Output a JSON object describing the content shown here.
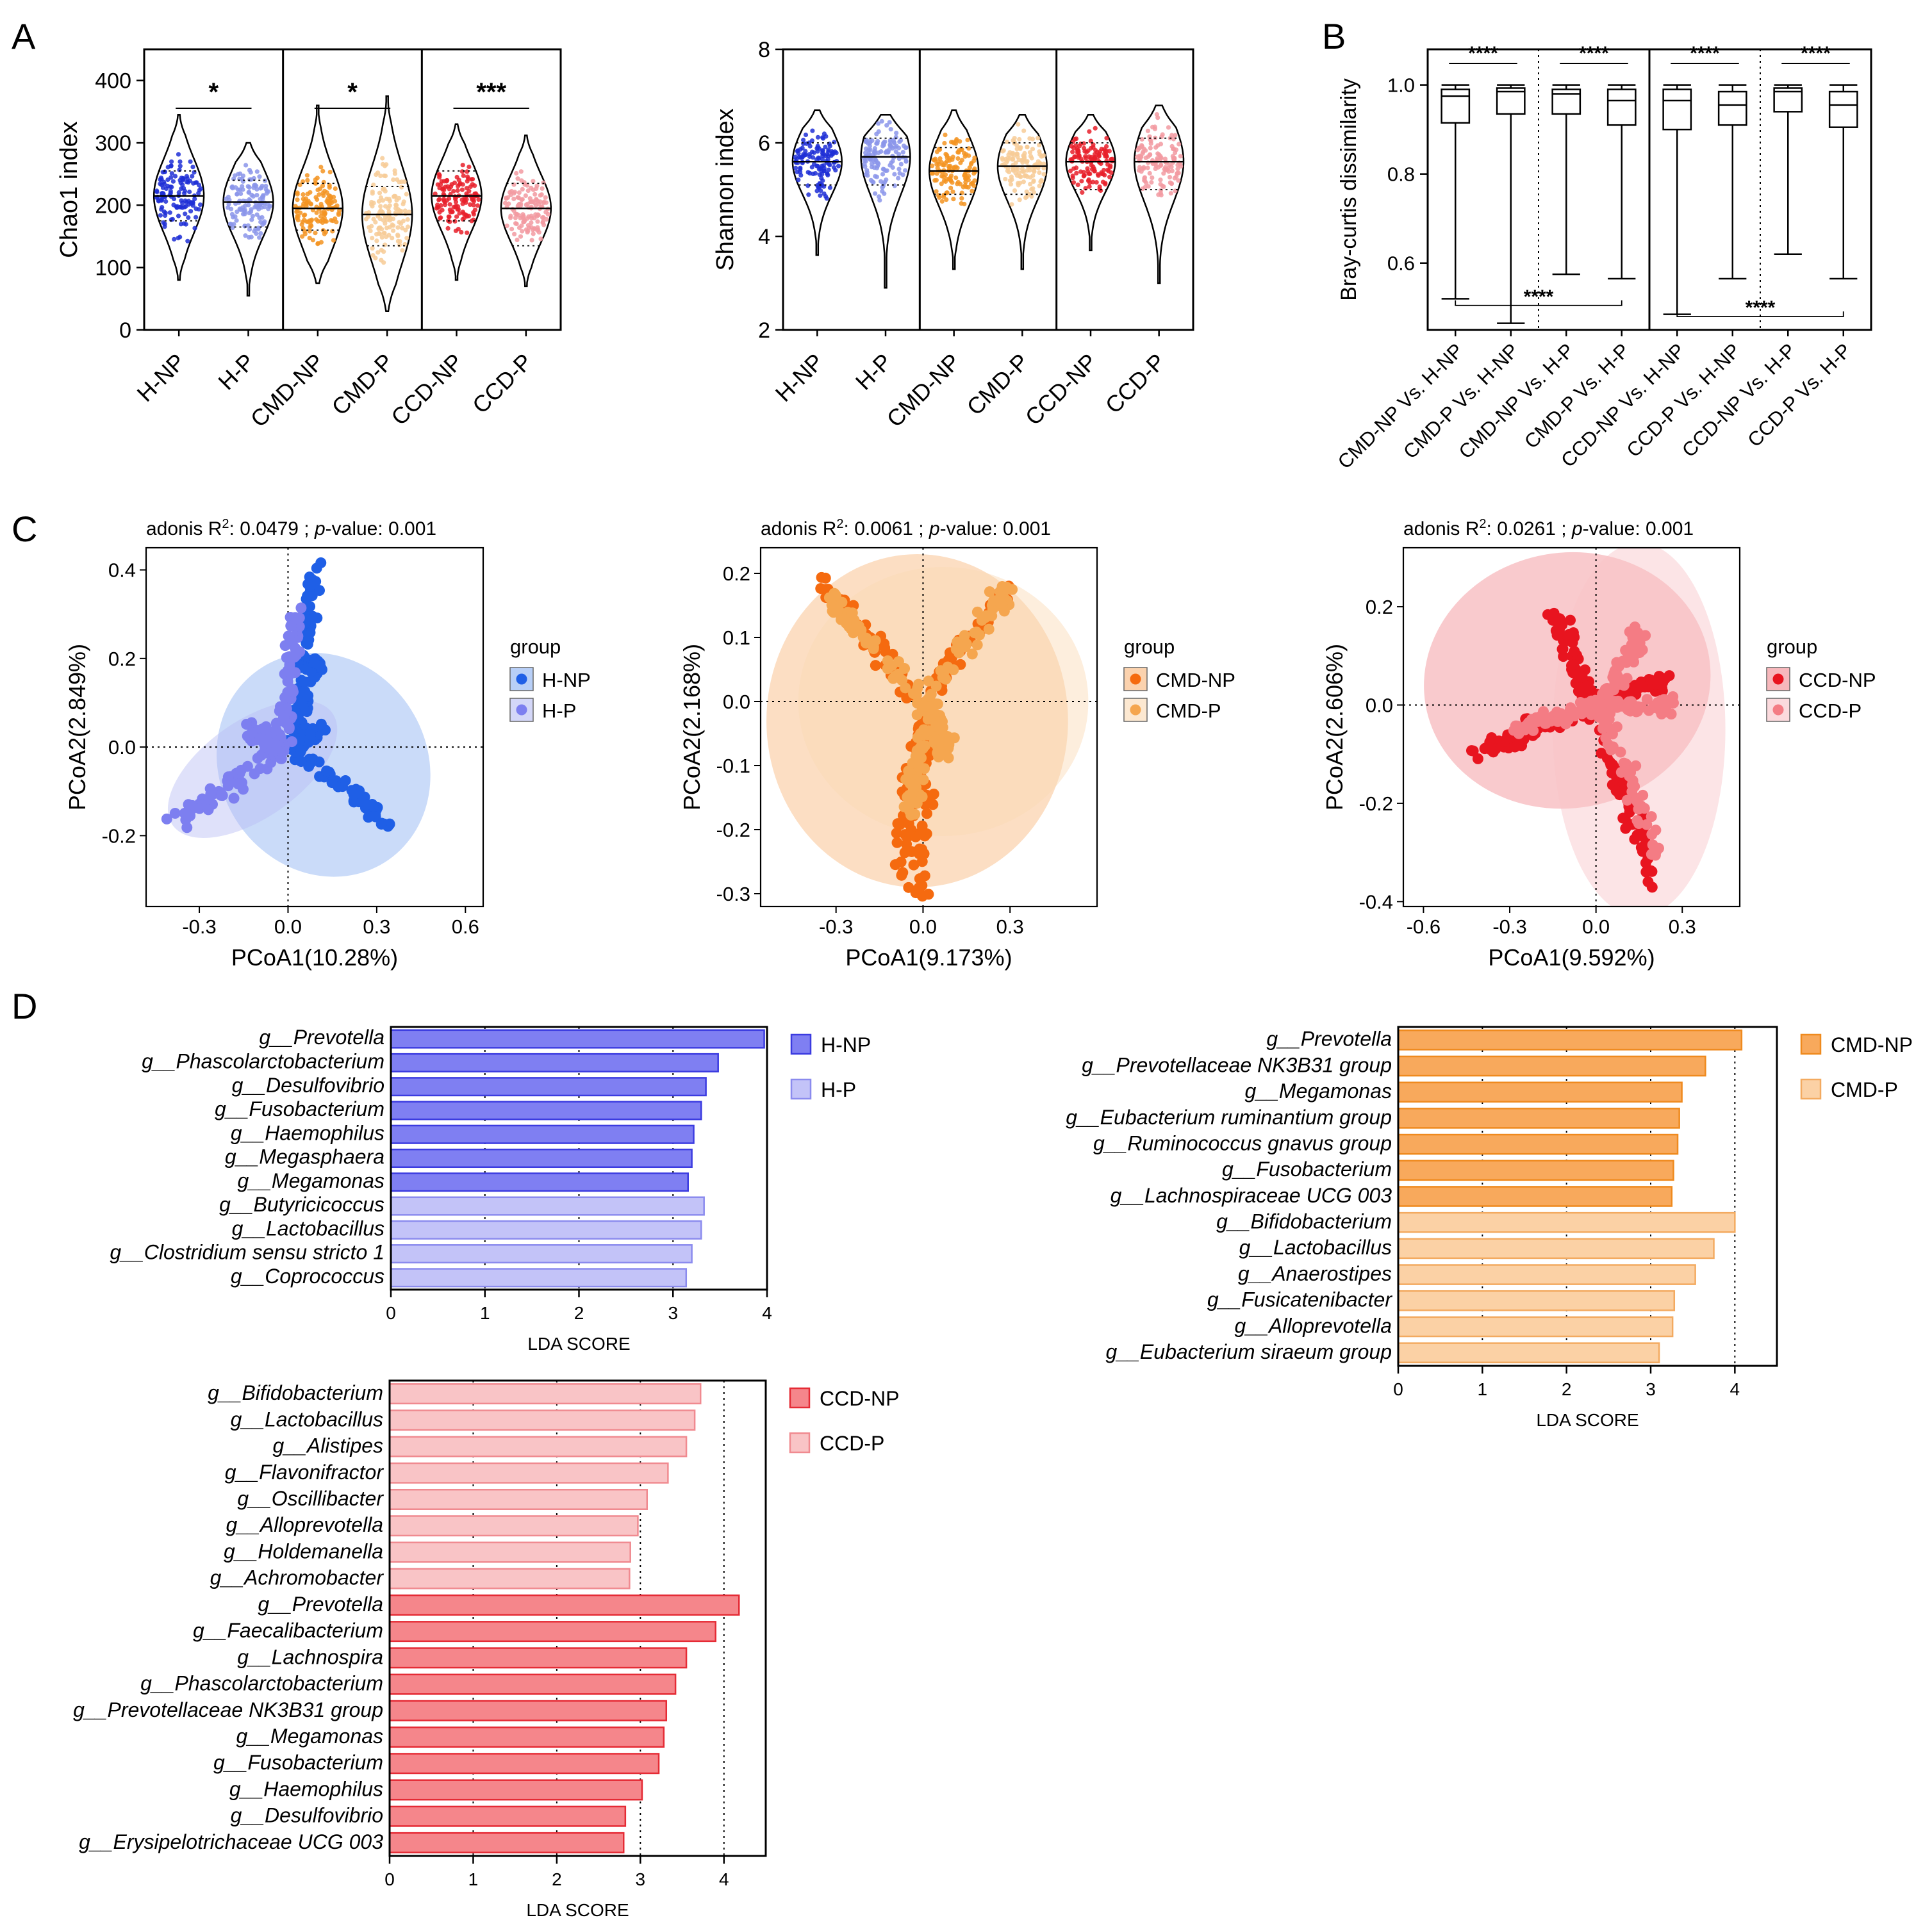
{
  "panels": {
    "A": {
      "label": "A"
    },
    "B": {
      "label": "B"
    },
    "C": {
      "label": "C"
    },
    "D": {
      "label": "D"
    }
  },
  "chart_data": [
    {
      "id": "chao1",
      "type": "violin",
      "panel": "A",
      "ylabel": "Chao1 index",
      "ylim": [
        0,
        450
      ],
      "yticks": [
        0,
        100,
        200,
        300,
        400
      ],
      "categories": [
        "H-NP",
        "H-P",
        "CMD-NP",
        "CMD-P",
        "CCD-NP",
        "CCD-P"
      ],
      "colors": [
        "#1f2fd6",
        "#8b95ea",
        "#f39422",
        "#f7cb96",
        "#e8202a",
        "#f29aa1"
      ],
      "ranges": [
        [
          80,
          345
        ],
        [
          55,
          300
        ],
        [
          75,
          360
        ],
        [
          30,
          375
        ],
        [
          80,
          330
        ],
        [
          70,
          312
        ]
      ],
      "medians": [
        215,
        205,
        195,
        185,
        215,
        195
      ],
      "quartiles": [
        [
          175,
          255
        ],
        [
          165,
          240
        ],
        [
          160,
          235
        ],
        [
          135,
          230
        ],
        [
          175,
          255
        ],
        [
          135,
          235
        ]
      ],
      "significance": [
        {
          "pair": [
            "H-NP",
            "H-P"
          ],
          "label": "*"
        },
        {
          "pair": [
            "CMD-NP",
            "CMD-P"
          ],
          "label": "*"
        },
        {
          "pair": [
            "CCD-NP",
            "CCD-P"
          ],
          "label": "***"
        }
      ]
    },
    {
      "id": "shannon",
      "type": "violin",
      "panel": "A",
      "ylabel": "Shannon index",
      "ylim": [
        2,
        8
      ],
      "yticks": [
        2,
        4,
        6,
        8
      ],
      "categories": [
        "H-NP",
        "H-P",
        "CMD-NP",
        "CMD-P",
        "CCD-NP",
        "CCD-P"
      ],
      "colors": [
        "#1f2fd6",
        "#8b95ea",
        "#f39422",
        "#f7cb96",
        "#e8202a",
        "#f29aa1"
      ],
      "ranges": [
        [
          3.6,
          6.7
        ],
        [
          2.9,
          6.6
        ],
        [
          3.3,
          6.7
        ],
        [
          3.3,
          6.6
        ],
        [
          3.7,
          6.6
        ],
        [
          3.0,
          6.8
        ]
      ],
      "medians": [
        5.6,
        5.7,
        5.4,
        5.5,
        5.6,
        5.6
      ],
      "quartiles": [
        [
          5.1,
          6.0
        ],
        [
          5.1,
          6.1
        ],
        [
          4.9,
          5.9
        ],
        [
          4.9,
          6.0
        ],
        [
          5.0,
          6.0
        ],
        [
          5.0,
          6.1
        ]
      ]
    },
    {
      "id": "bray",
      "type": "box",
      "panel": "B",
      "ylabel": "Bray-curtis dissimilarity",
      "ylim": [
        0.45,
        1.08
      ],
      "yticks": [
        0.6,
        0.8,
        1.0
      ],
      "ytick_labels": [
        "0.6",
        "0.8",
        "1.0"
      ],
      "categories": [
        "CMD-NP Vs. H-NP",
        "CMD-P Vs. H-NP",
        "CMD-NP Vs. H-P",
        "CMD-P Vs. H-P",
        "CCD-NP Vs. H-NP",
        "CCD-P Vs. H-NP",
        "CCD-NP Vs. H-P",
        "CCD-P Vs. H-P"
      ],
      "boxes": [
        {
          "min": 0.52,
          "q1": 0.915,
          "median": 0.975,
          "q3": 0.99,
          "max": 1.0
        },
        {
          "min": 0.465,
          "q1": 0.935,
          "median": 0.985,
          "q3": 0.993,
          "max": 1.0
        },
        {
          "min": 0.575,
          "q1": 0.935,
          "median": 0.98,
          "q3": 0.99,
          "max": 1.0
        },
        {
          "min": 0.565,
          "q1": 0.91,
          "median": 0.965,
          "q3": 0.99,
          "max": 1.0
        },
        {
          "min": 0.485,
          "q1": 0.9,
          "median": 0.965,
          "q3": 0.99,
          "max": 1.0
        },
        {
          "min": 0.565,
          "q1": 0.91,
          "median": 0.955,
          "q3": 0.985,
          "max": 1.0
        },
        {
          "min": 0.62,
          "q1": 0.94,
          "median": 0.985,
          "q3": 0.993,
          "max": 1.0
        },
        {
          "min": 0.565,
          "q1": 0.905,
          "median": 0.955,
          "q3": 0.985,
          "max": 1.0
        }
      ],
      "significance": [
        "****",
        "****",
        "****",
        "****",
        "****",
        "****"
      ]
    },
    {
      "id": "pcoa_h",
      "type": "scatter",
      "panel": "C",
      "title_prefix": "adonis R",
      "title_sup": "2",
      "title_value": ":  0.0479 ; ",
      "title_p_label": "p",
      "title_p_value": "-value:  0.001",
      "xlabel": "PCoA1(10.28%)",
      "ylabel": "PCoA2(2.849%)",
      "xlim": [
        -0.48,
        0.66
      ],
      "ylim": [
        -0.36,
        0.45
      ],
      "xticks": [
        -0.3,
        0.0,
        0.3,
        0.6
      ],
      "xtick_labels": [
        "-0.3",
        "0.0",
        "0.3",
        "0.6"
      ],
      "yticks": [
        -0.2,
        0.0,
        0.2,
        0.4
      ],
      "ytick_labels": [
        "-0.2",
        "0.0",
        "0.2",
        "0.4"
      ],
      "legend_title": "group",
      "series": [
        {
          "name": "H-NP",
          "color": "#1f5fe6",
          "ellipse_color": "#8ab0f2",
          "ellipse": {
            "cx": 0.12,
            "cy": -0.04,
            "rx": 0.35,
            "ry": 0.26,
            "angle": -32
          },
          "arms": [
            [
              0.08,
              0.42,
              0.3
            ],
            [
              0.08,
              0.2,
              0.28
            ],
            [
              0.1,
              0.04,
              0.3
            ],
            [
              0.34,
              -0.18,
              0.3
            ]
          ]
        },
        {
          "name": "H-P",
          "color": "#7d7ff0",
          "ellipse_color": "#b9bdf5",
          "ellipse": {
            "cx": -0.12,
            "cy": -0.05,
            "rx": 0.33,
            "ry": 0.11,
            "angle": -35
          },
          "arms": [
            [
              -0.36,
              -0.17,
              0.9
            ],
            [
              -0.1,
              0.03,
              0.9
            ],
            [
              0.04,
              0.3,
              0.35
            ]
          ]
        }
      ]
    },
    {
      "id": "pcoa_cmd",
      "type": "scatter",
      "panel": "C",
      "title_prefix": "adonis R",
      "title_sup": "2",
      "title_value": ":  0.0061 ; ",
      "title_p_label": "p",
      "title_p_value": "-value:  0.001",
      "xlabel": "PCoA1(9.173%)",
      "ylabel": "PCoA2(2.168%)",
      "xlim": [
        -0.56,
        0.6
      ],
      "ylim": [
        -0.32,
        0.24
      ],
      "xticks": [
        -0.3,
        0.0,
        0.3
      ],
      "xtick_labels": [
        "-0.3",
        "0.0",
        "0.3"
      ],
      "yticks": [
        -0.3,
        -0.2,
        -0.1,
        0.0,
        0.1,
        0.2
      ],
      "ytick_labels": [
        "-0.3",
        "-0.2",
        "-0.1",
        "0.0",
        "0.1",
        "0.2"
      ],
      "legend_title": "group",
      "series": [
        {
          "name": "CMD-NP",
          "color": "#f56a0f",
          "ellipse_color": "#f9b57a",
          "ellipse": {
            "cx": -0.02,
            "cy": -0.03,
            "rx": 0.52,
            "ry": 0.26,
            "angle": 0
          },
          "arms": [
            [
              -0.37,
              0.19,
              0.5
            ],
            [
              -0.08,
              -0.25,
              0.5
            ],
            [
              0.0,
              -0.3,
              0.8
            ],
            [
              0.3,
              0.18,
              0.35
            ]
          ]
        },
        {
          "name": "CMD-P",
          "color": "#f5a64f",
          "ellipse_color": "#fbd9b3",
          "ellipse": {
            "cx": 0.07,
            "cy": 0.0,
            "rx": 0.5,
            "ry": 0.21,
            "angle": 0
          },
          "arms": [
            [
              -0.33,
              0.16,
              0.3
            ],
            [
              -0.05,
              -0.17,
              0.4
            ],
            [
              0.29,
              0.18,
              0.7
            ],
            [
              0.08,
              -0.08,
              0.8
            ]
          ]
        }
      ]
    },
    {
      "id": "pcoa_ccd",
      "type": "scatter",
      "panel": "C",
      "title_prefix": "adonis R",
      "title_sup": "2",
      "title_value": ":  0.0261 ; ",
      "title_p_label": "p",
      "title_p_value": "-value:  0.001",
      "xlabel": "PCoA1(9.592%)",
      "ylabel": "PCoA2(2.606%)",
      "xlim": [
        -0.67,
        0.5
      ],
      "ylim": [
        -0.41,
        0.32
      ],
      "xticks": [
        -0.6,
        -0.3,
        0.0,
        0.3
      ],
      "xtick_labels": [
        "-0.6",
        "-0.3",
        "0.0",
        "0.3"
      ],
      "yticks": [
        -0.4,
        -0.2,
        0.0,
        0.2
      ],
      "ytick_labels": [
        "-0.4",
        "-0.2",
        "0.0",
        "0.2"
      ],
      "legend_title": "group",
      "series": [
        {
          "name": "CCD-NP",
          "color": "#e8141f",
          "ellipse_color": "#f28a90",
          "ellipse": {
            "cx": -0.1,
            "cy": 0.05,
            "rx": 0.5,
            "ry": 0.26,
            "angle": -10
          },
          "arms": [
            [
              -0.4,
              -0.1,
              0.9
            ],
            [
              -0.13,
              0.18,
              0.6
            ],
            [
              0.25,
              0.05,
              0.35
            ],
            [
              0.22,
              -0.37,
              0.8
            ]
          ]
        },
        {
          "name": "CCD-P",
          "color": "#f47c84",
          "ellipse_color": "#f9c3c7",
          "ellipse": {
            "cx": 0.15,
            "cy": -0.05,
            "rx": 0.3,
            "ry": 0.38,
            "angle": 0
          },
          "arms": [
            [
              -0.3,
              -0.05,
              0.4
            ],
            [
              0.15,
              0.15,
              0.5
            ],
            [
              0.25,
              0.0,
              0.4
            ],
            [
              0.2,
              -0.3,
              0.8
            ]
          ]
        }
      ]
    },
    {
      "id": "lefse_h",
      "type": "bar",
      "orientation": "horizontal",
      "panel": "D",
      "xlabel": "LDA SCORE",
      "xlim": [
        0,
        4
      ],
      "xticks": [
        0,
        1,
        2,
        3,
        4
      ],
      "legend": [
        {
          "name": "H-NP",
          "fill": "#7f7ff2",
          "stroke": "#3b3be0"
        },
        {
          "name": "H-P",
          "fill": "#c3c3f8",
          "stroke": "#8b8bee"
        }
      ],
      "categories": [
        "g__Prevotella",
        "g__Phascolarctobacterium",
        "g__Desulfovibrio",
        "g__Fusobacterium",
        "g__Haemophilus",
        "g__Megasphaera",
        "g__Megamonas",
        "g__Butyricicoccus",
        "g__Lactobacillus",
        "g__Clostridium sensu stricto 1",
        "g__Coprococcus"
      ],
      "values": [
        3.97,
        3.48,
        3.35,
        3.3,
        3.22,
        3.2,
        3.16,
        3.33,
        3.3,
        3.2,
        3.14
      ],
      "groups": [
        "H-NP",
        "H-NP",
        "H-NP",
        "H-NP",
        "H-NP",
        "H-NP",
        "H-NP",
        "H-P",
        "H-P",
        "H-P",
        "H-P"
      ]
    },
    {
      "id": "lefse_cmd",
      "type": "bar",
      "orientation": "horizontal",
      "panel": "D",
      "xlabel": "LDA SCORE",
      "xlim": [
        0,
        4.5
      ],
      "xticks": [
        0,
        1,
        2,
        3,
        4
      ],
      "legend": [
        {
          "name": "CMD-NP",
          "fill": "#f8a95c",
          "stroke": "#ef8a1e"
        },
        {
          "name": "CMD-P",
          "fill": "#fbd1a5",
          "stroke": "#f3aa60"
        }
      ],
      "categories": [
        "g__Prevotella",
        "g__Prevotellaceae NK3B31 group",
        "g__Megamonas",
        "g__Eubacterium ruminantium group",
        "g__Ruminococcus gnavus group",
        "g__Fusobacterium",
        "g__Lachnospiraceae UCG 003",
        "g__Bifidobacterium",
        "g__Lactobacillus",
        "g__Anaerostipes",
        "g__Fusicatenibacter",
        "g__Alloprevotella",
        "g__Eubacterium siraeum group"
      ],
      "values": [
        4.08,
        3.65,
        3.37,
        3.34,
        3.32,
        3.27,
        3.25,
        4.0,
        3.75,
        3.53,
        3.28,
        3.26,
        3.1
      ],
      "groups": [
        "CMD-NP",
        "CMD-NP",
        "CMD-NP",
        "CMD-NP",
        "CMD-NP",
        "CMD-NP",
        "CMD-NP",
        "CMD-P",
        "CMD-P",
        "CMD-P",
        "CMD-P",
        "CMD-P",
        "CMD-P"
      ]
    },
    {
      "id": "lefse_ccd",
      "type": "bar",
      "orientation": "horizontal",
      "panel": "D",
      "xlabel": "LDA SCORE",
      "xlim": [
        0,
        4.5
      ],
      "xticks": [
        0,
        1,
        2,
        3,
        4
      ],
      "legend": [
        {
          "name": "CCD-NP",
          "fill": "#f5868b",
          "stroke": "#e52b35"
        },
        {
          "name": "CCD-P",
          "fill": "#f9c4c6",
          "stroke": "#f08a90"
        }
      ],
      "categories": [
        "g__Bifidobacterium",
        "g__Lactobacillus",
        "g__Alistipes",
        "g__Flavonifractor",
        "g__Oscillibacter",
        "g__Alloprevotella",
        "g__Holdemanella",
        "g__Achromobacter",
        "g__Prevotella",
        "g__Faecalibacterium",
        "g__Lachnospira",
        "g__Phascolarctobacterium",
        "g__Prevotellaceae NK3B31 group",
        "g__Megamonas",
        "g__Fusobacterium",
        "g__Haemophilus",
        "g__Desulfovibrio",
        "g__Erysipelotrichaceae UCG 003"
      ],
      "values": [
        3.72,
        3.65,
        3.55,
        3.33,
        3.08,
        2.97,
        2.88,
        2.87,
        4.18,
        3.9,
        3.55,
        3.42,
        3.31,
        3.28,
        3.22,
        3.02,
        2.82,
        2.8
      ],
      "groups": [
        "CCD-P",
        "CCD-P",
        "CCD-P",
        "CCD-P",
        "CCD-P",
        "CCD-P",
        "CCD-P",
        "CCD-P",
        "CCD-NP",
        "CCD-NP",
        "CCD-NP",
        "CCD-NP",
        "CCD-NP",
        "CCD-NP",
        "CCD-NP",
        "CCD-NP",
        "CCD-NP",
        "CCD-NP"
      ]
    }
  ]
}
